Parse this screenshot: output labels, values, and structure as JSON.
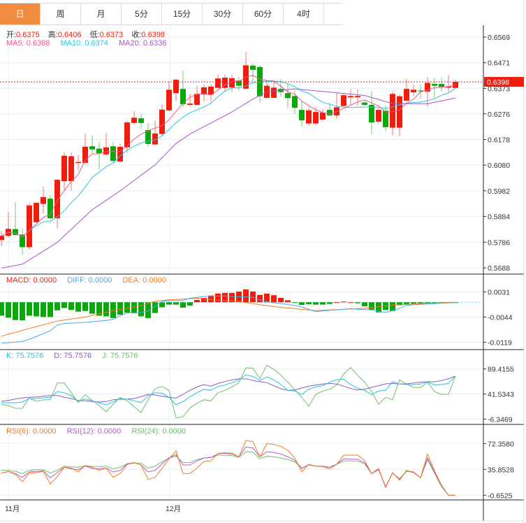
{
  "tabs": [
    {
      "label": "日",
      "active": true
    },
    {
      "label": "周"
    },
    {
      "label": "月"
    },
    {
      "label": "5分"
    },
    {
      "label": "15分"
    },
    {
      "label": "30分"
    },
    {
      "label": "60分"
    },
    {
      "label": "4时"
    }
  ],
  "ohlc_header": {
    "open_label": "开:",
    "open": "0.6375",
    "high_label": "高:",
    "high": "0.6406",
    "low_label": "低:",
    "low": "0.6373",
    "close_label": "收:",
    "close": "0.6398"
  },
  "ma_header": {
    "ma5": "MA5: 0.6388",
    "ma10": "MA10: 0.6374",
    "ma20": "MA20: 0.6336"
  },
  "macd_header": {
    "macd": "MACD: 0.0000",
    "diff": "DIFF: 0.0000",
    "dea": "DEA: 0.0000"
  },
  "kdj_header": {
    "k": "K: 75.7576",
    "d": "D: 75.7576",
    "j": "J: 75.7576"
  },
  "rsi_header": {
    "rsi6": "RSI(6): 0.0000",
    "rsi12": "RSI(12): 0.0000",
    "rsi24": "RSI(24): 0.0000"
  },
  "colors": {
    "up": "#f01c0c",
    "down": "#0aa80a",
    "ma5": "#f0588a",
    "ma10": "#2ec6e0",
    "ma20": "#a855c8",
    "diff": "#4aa8f0",
    "dea": "#f57a20",
    "k": "#23c4e0",
    "d": "#8a58d0",
    "j": "#6cbf6c",
    "rsi6": "#f57a20",
    "rsi12": "#b55cc8",
    "rsi24": "#6cbf6c",
    "active_tab": "#f08c3f"
  },
  "chart_data": {
    "type": "candlestick",
    "x_labels": [
      {
        "index": 1,
        "label": "11月"
      },
      {
        "index": 24,
        "label": "12月"
      }
    ],
    "last_price": "0.6398",
    "price_axis": {
      "ticks": [
        "0.6569",
        "0.6471",
        "0.6373",
        "0.6276",
        "0.6178",
        "0.6080",
        "0.5982",
        "0.5884",
        "0.5786",
        "0.5688"
      ],
      "range": [
        0.5688,
        0.6569
      ]
    },
    "candles_ohlc": [
      [
        0.5794,
        0.5829,
        0.5771,
        0.581
      ],
      [
        0.581,
        0.5901,
        0.5803,
        0.5837
      ],
      [
        0.5836,
        0.5939,
        0.5812,
        0.5813
      ],
      [
        0.5815,
        0.5837,
        0.5739,
        0.5767
      ],
      [
        0.5767,
        0.5934,
        0.5757,
        0.5926
      ],
      [
        0.5862,
        0.5939,
        0.5861,
        0.5936
      ],
      [
        0.5932,
        0.5998,
        0.5896,
        0.5958
      ],
      [
        0.5952,
        0.5966,
        0.5871,
        0.5877
      ],
      [
        0.5877,
        0.6027,
        0.5838,
        0.6024
      ],
      [
        0.6019,
        0.6128,
        0.5985,
        0.6116
      ],
      [
        0.6019,
        0.6128,
        0.5982,
        0.6114
      ],
      [
        0.6088,
        0.6119,
        0.6061,
        0.6092
      ],
      [
        0.6089,
        0.6201,
        0.6083,
        0.615
      ],
      [
        0.6152,
        0.6193,
        0.6125,
        0.614
      ],
      [
        0.6143,
        0.6166,
        0.6063,
        0.6125
      ],
      [
        0.6121,
        0.6203,
        0.6114,
        0.6148
      ],
      [
        0.6152,
        0.6168,
        0.6089,
        0.6096
      ],
      [
        0.6094,
        0.6161,
        0.6092,
        0.615
      ],
      [
        0.6148,
        0.6248,
        0.6128,
        0.6243
      ],
      [
        0.6241,
        0.6286,
        0.6234,
        0.6261
      ],
      [
        0.6259,
        0.6275,
        0.6217,
        0.6241
      ],
      [
        0.6214,
        0.6241,
        0.6152,
        0.6161
      ],
      [
        0.6159,
        0.625,
        0.6159,
        0.6201
      ],
      [
        0.6199,
        0.6312,
        0.619,
        0.6292
      ],
      [
        0.6289,
        0.6397,
        0.6286,
        0.6368
      ],
      [
        0.6355,
        0.6411,
        0.6326,
        0.6406
      ],
      [
        0.6371,
        0.6441,
        0.6301,
        0.6313
      ],
      [
        0.631,
        0.6353,
        0.6303,
        0.6315
      ],
      [
        0.631,
        0.6383,
        0.6308,
        0.6352
      ],
      [
        0.635,
        0.6387,
        0.6323,
        0.6377
      ],
      [
        0.635,
        0.6387,
        0.6323,
        0.638
      ],
      [
        0.6375,
        0.6426,
        0.6372,
        0.6411
      ],
      [
        0.6375,
        0.6426,
        0.6359,
        0.6414
      ],
      [
        0.6377,
        0.6426,
        0.6359,
        0.6412
      ],
      [
        0.6403,
        0.6417,
        0.6363,
        0.6383
      ],
      [
        0.6372,
        0.6513,
        0.6371,
        0.6461
      ],
      [
        0.646,
        0.6468,
        0.6401,
        0.6444
      ],
      [
        0.6455,
        0.6461,
        0.6319,
        0.6343
      ],
      [
        0.6337,
        0.6399,
        0.6334,
        0.6383
      ],
      [
        0.6337,
        0.6399,
        0.6336,
        0.6376
      ],
      [
        0.6371,
        0.6408,
        0.6341,
        0.6359
      ],
      [
        0.6355,
        0.639,
        0.6299,
        0.6336
      ],
      [
        0.6344,
        0.6363,
        0.6276,
        0.6299
      ],
      [
        0.6291,
        0.6326,
        0.6228,
        0.6251
      ],
      [
        0.6239,
        0.6301,
        0.6232,
        0.6289
      ],
      [
        0.6239,
        0.6301,
        0.6233,
        0.6283
      ],
      [
        0.6254,
        0.6294,
        0.6249,
        0.6281
      ],
      [
        0.6291,
        0.6313,
        0.6268,
        0.627
      ],
      [
        0.627,
        0.6355,
        0.6257,
        0.6301
      ],
      [
        0.6306,
        0.6355,
        0.6301,
        0.6347
      ],
      [
        0.6339,
        0.637,
        0.631,
        0.6344
      ],
      [
        0.6339,
        0.637,
        0.631,
        0.6344
      ],
      [
        0.6319,
        0.6326,
        0.6308,
        0.631
      ],
      [
        0.631,
        0.6361,
        0.6199,
        0.6243
      ],
      [
        0.6246,
        0.6301,
        0.6237,
        0.6291
      ],
      [
        0.6288,
        0.6307,
        0.621,
        0.6225
      ],
      [
        0.6223,
        0.6359,
        0.6193,
        0.6352
      ],
      [
        0.6223,
        0.635,
        0.619,
        0.6343
      ],
      [
        0.6326,
        0.641,
        0.6323,
        0.6371
      ],
      [
        0.6358,
        0.6387,
        0.6343,
        0.6368
      ],
      [
        0.6365,
        0.6388,
        0.6332,
        0.6362
      ],
      [
        0.6361,
        0.6417,
        0.6303,
        0.6394
      ],
      [
        0.639,
        0.6414,
        0.6336,
        0.6383
      ],
      [
        0.639,
        0.6414,
        0.6361,
        0.6379
      ],
      [
        0.6376,
        0.6424,
        0.6359,
        0.6381
      ],
      [
        0.6375,
        0.6406,
        0.6373,
        0.6398
      ]
    ],
    "ma20_points": [
      [
        0,
        0.5687
      ],
      [
        3,
        0.5702
      ],
      [
        8,
        0.5785
      ],
      [
        13,
        0.591
      ],
      [
        17,
        0.5982
      ],
      [
        22,
        0.6081
      ],
      [
        25,
        0.6163
      ],
      [
        27,
        0.6199
      ],
      [
        33,
        0.6283
      ],
      [
        36,
        0.6332
      ],
      [
        38,
        0.6359
      ],
      [
        42,
        0.6371
      ],
      [
        47,
        0.6359
      ],
      [
        52,
        0.6346
      ],
      [
        56,
        0.6315
      ],
      [
        61,
        0.6315
      ],
      [
        65,
        0.6336
      ]
    ],
    "macd_axis": {
      "ticks": [
        "0.0031",
        "-0.0044",
        "-0.0119"
      ]
    },
    "macd_hist": [
      -0.004,
      -0.0046,
      -0.0053,
      -0.0054,
      -0.004,
      -0.0042,
      -0.0044,
      -0.0044,
      -0.0024,
      -0.0017,
      -0.0023,
      -0.0028,
      -0.0026,
      -0.0034,
      -0.004,
      -0.0042,
      -0.0047,
      -0.0037,
      -0.0031,
      -0.0033,
      -0.0042,
      -0.0047,
      -0.0032,
      -0.0015,
      -0.0007,
      -0.0007,
      -0.0016,
      -0.001,
      0.0007,
      0.0013,
      0.002,
      0.0026,
      0.0028,
      0.0028,
      0.0032,
      0.0038,
      0.0032,
      0.0022,
      0.0026,
      0.0021,
      0.0013,
      0.0006,
      -0.0002,
      -0.0008,
      -0.0006,
      -0.0007,
      -0.0007,
      -0.0005,
      0.0,
      0.0002,
      0.0,
      -0.0003,
      -0.0012,
      -0.0022,
      -0.003,
      -0.0023,
      -0.0026,
      -0.0009,
      -0.0007,
      -0.0004,
      -0.0004,
      -0.0003,
      -0.0003,
      -0.0002,
      -0.0001,
      -0.0001
    ],
    "diff_points": [
      [
        0,
        -0.0122
      ],
      [
        3,
        -0.0117
      ],
      [
        4,
        -0.011
      ],
      [
        7,
        -0.0085
      ],
      [
        8,
        -0.0068
      ],
      [
        9,
        -0.0063
      ],
      [
        12,
        -0.006
      ],
      [
        15,
        -0.0054
      ],
      [
        16,
        -0.0051
      ],
      [
        17,
        -0.004
      ],
      [
        18,
        -0.0032
      ],
      [
        20,
        -0.003
      ],
      [
        21,
        -0.0026
      ],
      [
        22,
        -0.0013
      ],
      [
        23,
        0.0003
      ],
      [
        24,
        0.0005
      ],
      [
        26,
        0.0005
      ],
      [
        27,
        0.0012
      ],
      [
        29,
        0.0017
      ],
      [
        32,
        0.0019
      ],
      [
        33,
        0.0017
      ],
      [
        36,
        0.0015
      ],
      [
        37,
        0.0007
      ],
      [
        39,
        -0.0002
      ],
      [
        41,
        -0.0006
      ],
      [
        43,
        -0.0014
      ],
      [
        45,
        -0.0028
      ],
      [
        47,
        -0.0024
      ],
      [
        49,
        -0.0021
      ],
      [
        50,
        -0.0019
      ],
      [
        53,
        -0.0023
      ],
      [
        55,
        -0.003
      ],
      [
        56,
        -0.0025
      ],
      [
        57,
        -0.0018
      ],
      [
        58,
        -0.0009
      ],
      [
        60,
        -0.0006
      ],
      [
        65,
        -0.0001
      ]
    ],
    "dea_points": [
      [
        0,
        -0.0101
      ],
      [
        4,
        -0.0078
      ],
      [
        8,
        -0.0056
      ],
      [
        12,
        -0.0044
      ],
      [
        16,
        -0.0025
      ],
      [
        20,
        -0.001
      ],
      [
        22,
        0.0003
      ],
      [
        24,
        0.0007
      ],
      [
        28,
        0.0012
      ],
      [
        30,
        0.0008
      ],
      [
        32,
        0.0005
      ],
      [
        33,
        0.0005
      ],
      [
        36,
        -0.0004
      ],
      [
        39,
        -0.0013
      ],
      [
        42,
        -0.0019
      ],
      [
        45,
        -0.0025
      ],
      [
        48,
        -0.0022
      ],
      [
        51,
        -0.0019
      ],
      [
        53,
        -0.0016
      ],
      [
        55,
        -0.0011
      ],
      [
        57,
        -0.0007
      ],
      [
        60,
        -0.0004
      ],
      [
        65,
        0.0
      ]
    ],
    "kdj_axis": {
      "ticks": [
        "89.4155",
        "41.5343",
        "-6.3469"
      ]
    },
    "k": [
      24.8,
      24.8,
      24.8,
      26.2,
      32.9,
      32.9,
      34.2,
      35.1,
      46.2,
      44.0,
      38.2,
      27.5,
      32.0,
      28.4,
      24.8,
      20.8,
      26.2,
      32.9,
      31.5,
      28.4,
      24.8,
      38.2,
      44.0,
      43.1,
      35.1,
      20.8,
      27.1,
      36.4,
      44.0,
      50.7,
      48.5,
      56.0,
      58.7,
      63.2,
      68.5,
      78.3,
      75.2,
      67.2,
      74.3,
      68.5,
      59.6,
      48.5,
      47.1,
      40.4,
      50.7,
      55.1,
      57.4,
      64.1,
      68.5,
      69.8,
      59.6,
      52.9,
      48.5,
      40.4,
      47.1,
      48.5,
      64.9,
      60.5,
      59.6,
      59.6,
      60.5,
      64.9,
      58.7,
      59.6,
      61.8,
      75.8
    ],
    "d": [
      27.5,
      29.3,
      32.0,
      34.2,
      35.1,
      36.0,
      37.3,
      38.6,
      38.6,
      35.1,
      32.9,
      29.3,
      28.4,
      27.1,
      26.2,
      27.1,
      30.6,
      31.5,
      31.5,
      32.9,
      36.4,
      40.9,
      39.5,
      37.3,
      35.1,
      33.7,
      40.9,
      48.5,
      55.1,
      59.6,
      56.5,
      61.8,
      65.4,
      68.5,
      70.7,
      70.7,
      67.2,
      64.9,
      63.2,
      57.4,
      51.6,
      48.5,
      49.3,
      52.9,
      56.5,
      58.7,
      60.5,
      61.8,
      60.5,
      56.5,
      52.0,
      49.3,
      50.7,
      54.3,
      57.4,
      60.9,
      61.8,
      60.5,
      60.9,
      62.7,
      64.1,
      64.9,
      64.9,
      67.2,
      70.7,
      75.8
    ],
    "j": [
      21.7,
      19.5,
      14.1,
      14.1,
      33.7,
      27.5,
      30.6,
      30.6,
      62.7,
      62.7,
      44.0,
      25.3,
      40.4,
      29.3,
      19.5,
      7.5,
      21.7,
      35.1,
      28.4,
      17.3,
      6.1,
      30.6,
      51.6,
      56.0,
      48.5,
      -4.1,
      -1.9,
      15.0,
      23.9,
      30.6,
      28.4,
      44.0,
      48.5,
      55.1,
      63.2,
      91.7,
      90.8,
      70.7,
      96.6,
      88.6,
      77.4,
      64.1,
      49.8,
      35.1,
      18.1,
      40.9,
      47.1,
      50.7,
      58.7,
      79.7,
      92.1,
      77.4,
      64.1,
      46.2,
      21.7,
      35.1,
      30.6,
      68.5,
      60.5,
      54.3,
      53.8,
      64.1,
      46.2,
      40.9,
      40.9,
      75.8
    ],
    "rsi_axis": {
      "ticks": [
        "72.3580",
        "35.8528",
        "-0.6525"
      ]
    },
    "rsi6": [
      30.6,
      32.9,
      28.9,
      18.4,
      30.6,
      31.2,
      33.2,
      15.1,
      25.6,
      38.8,
      37.8,
      32.2,
      41.1,
      38.8,
      34.5,
      37.8,
      24.6,
      29.9,
      42.7,
      45.4,
      42.1,
      21.7,
      24.6,
      37.1,
      50.9,
      61.8,
      29.9,
      29.9,
      37.8,
      47.0,
      47.7,
      58.5,
      59.2,
      58.5,
      53.6,
      76.6,
      74.9,
      53.6,
      72.3,
      71.0,
      68.4,
      62.8,
      51.9,
      32.2,
      43.1,
      40.4,
      39.8,
      36.5,
      43.1,
      55.9,
      55.9,
      55.9,
      48.6,
      29.9,
      37.1,
      10.2,
      31.2,
      20.7,
      34.5,
      31.2,
      24.0,
      57.5,
      33.8,
      13.5,
      -0.65,
      -0.65
    ],
    "rsi12": [
      30.6,
      32.9,
      29.9,
      24.6,
      32.2,
      32.9,
      33.8,
      24.0,
      31.2,
      38.8,
      36.5,
      35.5,
      40.4,
      37.1,
      36.5,
      37.8,
      32.2,
      34.5,
      43.7,
      45.4,
      42.1,
      32.2,
      34.5,
      43.7,
      51.9,
      56.9,
      42.1,
      42.1,
      47.7,
      51.9,
      52.6,
      57.9,
      58.5,
      57.5,
      53.6,
      67.4,
      66.1,
      53.6,
      60.8,
      59.5,
      57.5,
      53.6,
      48.6,
      37.1,
      42.7,
      40.4,
      40.4,
      38.8,
      43.1,
      50.9,
      50.3,
      50.3,
      45.4,
      29.9,
      35.5,
      11.5,
      30.6,
      22.3,
      33.8,
      32.2,
      24.0,
      51.9,
      32.2,
      12.5,
      -0.65,
      -0.65
    ],
    "rsi24": [
      34.5,
      34.5,
      32.9,
      29.9,
      34.5,
      35.5,
      35.5,
      30.6,
      34.5,
      40.4,
      39.4,
      38.8,
      41.1,
      39.8,
      39.8,
      40.4,
      36.5,
      38.8,
      43.7,
      44.7,
      44.4,
      37.8,
      40.4,
      46.4,
      51.9,
      54.6,
      45.4,
      45.4,
      49.6,
      51.9,
      52.6,
      55.9,
      55.9,
      55.2,
      52.9,
      60.8,
      60.2,
      50.9,
      54.6,
      53.6,
      51.9,
      49.6,
      46.4,
      37.8,
      42.1,
      40.4,
      39.8,
      38.8,
      43.1,
      47.7,
      47.7,
      47.7,
      43.7,
      29.9,
      36.5,
      11.5,
      30.6,
      22.3,
      33.2,
      31.5,
      24.0,
      49.6,
      30.6,
      11.5,
      -0.65,
      -0.65
    ]
  }
}
